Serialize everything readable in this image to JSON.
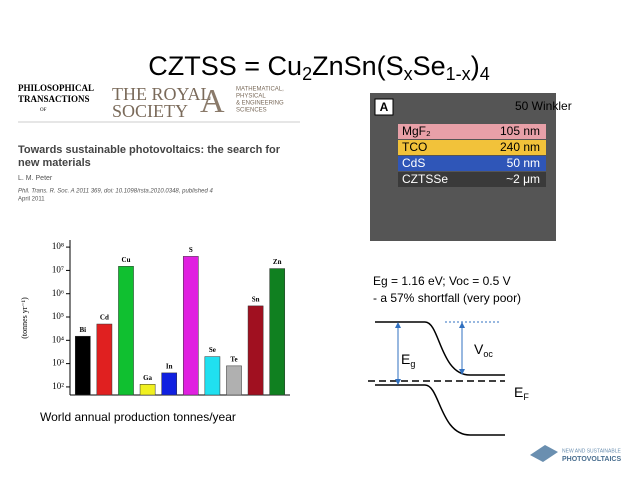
{
  "slide": {
    "title": [
      "CZTSS = Cu",
      "2",
      "ZnSn(S",
      "x",
      "Se",
      "1-x",
      ")",
      "4"
    ],
    "journal": {
      "name_left": [
        "PHILOSOPHICAL",
        "TRANSACTIONS",
        "OF"
      ],
      "name_right": [
        "THE ROYAL",
        "SOCIETY"
      ],
      "letter": "A",
      "fields": [
        "MATHEMATICAL,",
        "PHYSICAL",
        "& ENGINEERING",
        "SCIENCES"
      ]
    },
    "paper": {
      "title": [
        "Towards sustainable photovoltaics: the search for",
        "new materials"
      ],
      "author": "L. M. Peter",
      "citation": [
        "Phil. Trans. R. Soc. A 2011 369, doi: 10.1098/rsta.2010.0348, published 4",
        "April 2011"
      ]
    },
    "stack": {
      "letter": "A",
      "layers": [
        {
          "name": "MgF₂",
          "thickness": "105 nm",
          "color": "#e8a0a8"
        },
        {
          "name": "TCO",
          "thickness": "240 nm",
          "color": "#f2c23a"
        },
        {
          "name": "CdS",
          "thickness": "50 nm",
          "color": "#2f56b8"
        },
        {
          "name": "CZTSSe",
          "thickness": "~2 μm",
          "color": "#3a3a3a"
        }
      ]
    },
    "reference": "50 Winkler",
    "notes": [
      "Eg = 1.16 eV;  Voc = 0.5 V",
      "- a 57% shortfall (very poor)"
    ],
    "band": {
      "eg": [
        "E",
        "g"
      ],
      "voc": [
        "V",
        "oc"
      ],
      "ef": [
        "E",
        "F"
      ]
    },
    "caption": "World annual production tonnes/year",
    "logo": [
      "NEW AND SUSTAINABLE",
      "PHOTOVOLTAICS"
    ]
  },
  "chart_data": {
    "type": "bar",
    "ylabel": "(tonnes yr⁻¹)",
    "log_scale": true,
    "categories": [
      "Bi",
      "Cd",
      "Cu",
      "Ga",
      "In",
      "S",
      "Se",
      "Te",
      "Sn",
      "Zn"
    ],
    "values": [
      15000,
      50000,
      15000000,
      130,
      400,
      40000000,
      2000,
      800,
      300000,
      12000000
    ],
    "colors": [
      "#000000",
      "#e02020",
      "#10c030",
      "#f0f020",
      "#1020e0",
      "#e020e0",
      "#20e0f0",
      "#b0b0b0",
      "#a01020",
      "#108020"
    ],
    "ylim": [
      45,
      150000000
    ],
    "yticks": [
      {
        "value": 100,
        "label": "10²"
      },
      {
        "value": 1000,
        "label": "10³"
      },
      {
        "value": 10000,
        "label": "10⁴"
      },
      {
        "value": 100000,
        "label": "10⁵"
      },
      {
        "value": 1000000,
        "label": "10⁶"
      },
      {
        "value": 10000000,
        "label": "10⁷"
      },
      {
        "value": 100000000,
        "label": "10⁸"
      }
    ]
  }
}
